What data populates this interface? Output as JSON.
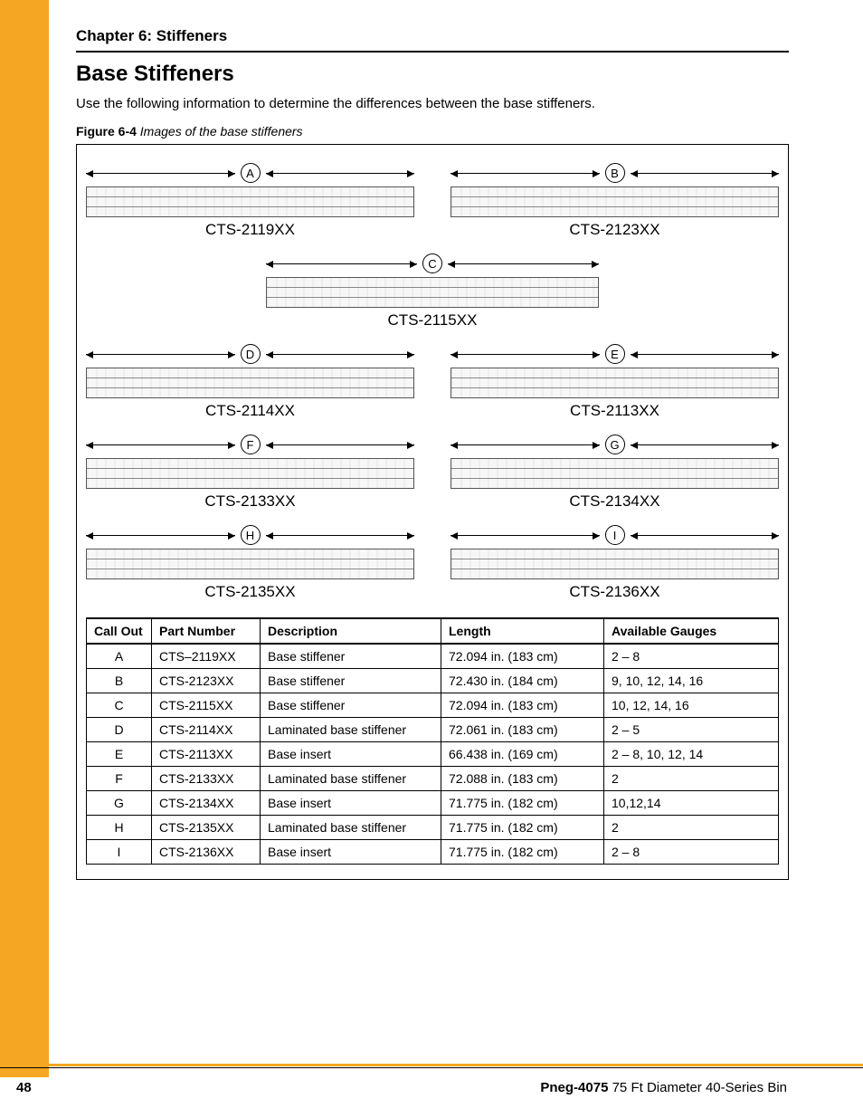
{
  "chapter": "Chapter 6: Stiffeners",
  "section": "Base Stiffeners",
  "intro": "Use the following information to determine the differences between the base stiffeners.",
  "figure": {
    "label": "Figure 6-4",
    "caption": "Images of the base stiffeners"
  },
  "diagrams": {
    "a": {
      "callout": "A",
      "part": "CTS-2119XX"
    },
    "b": {
      "callout": "B",
      "part": "CTS-2123XX"
    },
    "c": {
      "callout": "C",
      "part": "CTS-2115XX"
    },
    "d": {
      "callout": "D",
      "part": "CTS-2114XX"
    },
    "e": {
      "callout": "E",
      "part": "CTS-2113XX"
    },
    "f": {
      "callout": "F",
      "part": "CTS-2133XX"
    },
    "g": {
      "callout": "G",
      "part": "CTS-2134XX"
    },
    "h": {
      "callout": "H",
      "part": "CTS-2135XX"
    },
    "i": {
      "callout": "I",
      "part": "CTS-2136XX"
    }
  },
  "table": {
    "headers": {
      "c0": "Call Out",
      "c1": "Part Number",
      "c2": "Description",
      "c3": "Length",
      "c4": "Available Gauges"
    },
    "rows": [
      {
        "c0": "A",
        "c1": "CTS–2119XX",
        "c2": "Base stiffener",
        "c3": "72.094 in. (183 cm)",
        "c4": "2 – 8"
      },
      {
        "c0": "B",
        "c1": "CTS-2123XX",
        "c2": "Base stiffener",
        "c3": "72.430 in. (184 cm)",
        "c4": "9, 10, 12, 14, 16"
      },
      {
        "c0": "C",
        "c1": "CTS-2115XX",
        "c2": "Base stiffener",
        "c3": "72.094 in. (183 cm)",
        "c4": "10, 12, 14, 16"
      },
      {
        "c0": "D",
        "c1": "CTS-2114XX",
        "c2": "Laminated base stiffener",
        "c3": "72.061 in. (183 cm)",
        "c4": "2 – 5"
      },
      {
        "c0": "E",
        "c1": "CTS-2113XX",
        "c2": "Base insert",
        "c3": "66.438 in. (169 cm)",
        "c4": "2 – 8, 10, 12, 14"
      },
      {
        "c0": "F",
        "c1": "CTS-2133XX",
        "c2": "Laminated base stiffener",
        "c3": "72.088 in. (183 cm)",
        "c4": "2"
      },
      {
        "c0": "G",
        "c1": "CTS-2134XX",
        "c2": "Base insert",
        "c3": "71.775 in. (182 cm)",
        "c4": "10,12,14"
      },
      {
        "c0": "H",
        "c1": "CTS-2135XX",
        "c2": "Laminated base stiffener",
        "c3": "71.775 in. (182 cm)",
        "c4": "2"
      },
      {
        "c0": "I",
        "c1": "CTS-2136XX",
        "c2": "Base insert",
        "c3": "71.775 in. (182 cm)",
        "c4": "2 – 8"
      }
    ]
  },
  "footer": {
    "page": "48",
    "docid": "Pneg-4075",
    "docdesc": " 75 Ft Diameter 40-Series Bin"
  },
  "colors": {
    "accent": "#f5a623",
    "text": "#000000",
    "border": "#000000"
  }
}
